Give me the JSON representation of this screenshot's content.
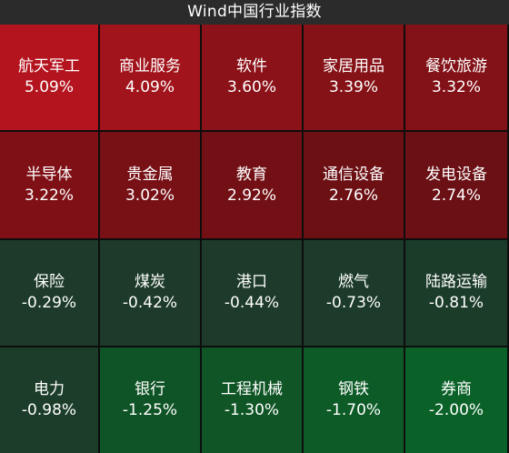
{
  "header": {
    "title": "Wind中国行业指数"
  },
  "tiles": [
    {
      "name": "航天军工",
      "value": "5.09%",
      "color": "#b4141e"
    },
    {
      "name": "商业服务",
      "value": "4.09%",
      "color": "#a1141b"
    },
    {
      "name": "软件",
      "value": "3.60%",
      "color": "#8b1218"
    },
    {
      "name": "家居用品",
      "value": "3.39%",
      "color": "#851217"
    },
    {
      "name": "餐饮旅游",
      "value": "3.32%",
      "color": "#821217"
    },
    {
      "name": "半导体",
      "value": "3.22%",
      "color": "#7f1116"
    },
    {
      "name": "贵金属",
      "value": "3.02%",
      "color": "#771116"
    },
    {
      "name": "教育",
      "value": "2.92%",
      "color": "#731015"
    },
    {
      "name": "通信设备",
      "value": "2.76%",
      "color": "#6c1014"
    },
    {
      "name": "发电设备",
      "value": "2.74%",
      "color": "#6b1014"
    },
    {
      "name": "保险",
      "value": "-0.29%",
      "color": "#1d3a2a"
    },
    {
      "name": "煤炭",
      "value": "-0.42%",
      "color": "#1d3a2a"
    },
    {
      "name": "港口",
      "value": "-0.44%",
      "color": "#1d3a2a"
    },
    {
      "name": "燃气",
      "value": "-0.73%",
      "color": "#1c3b2a"
    },
    {
      "name": "陆路运输",
      "value": "-0.81%",
      "color": "#1c3c2a"
    },
    {
      "name": "电力",
      "value": "-0.98%",
      "color": "#1c3d2a"
    },
    {
      "name": "银行",
      "value": "-1.25%",
      "color": "#0f5426"
    },
    {
      "name": "工程机械",
      "value": "-1.30%",
      "color": "#0f5526"
    },
    {
      "name": "钢铁",
      "value": "-1.70%",
      "color": "#0d5b27"
    },
    {
      "name": "券商",
      "value": "-2.00%",
      "color": "#0b6229"
    }
  ]
}
